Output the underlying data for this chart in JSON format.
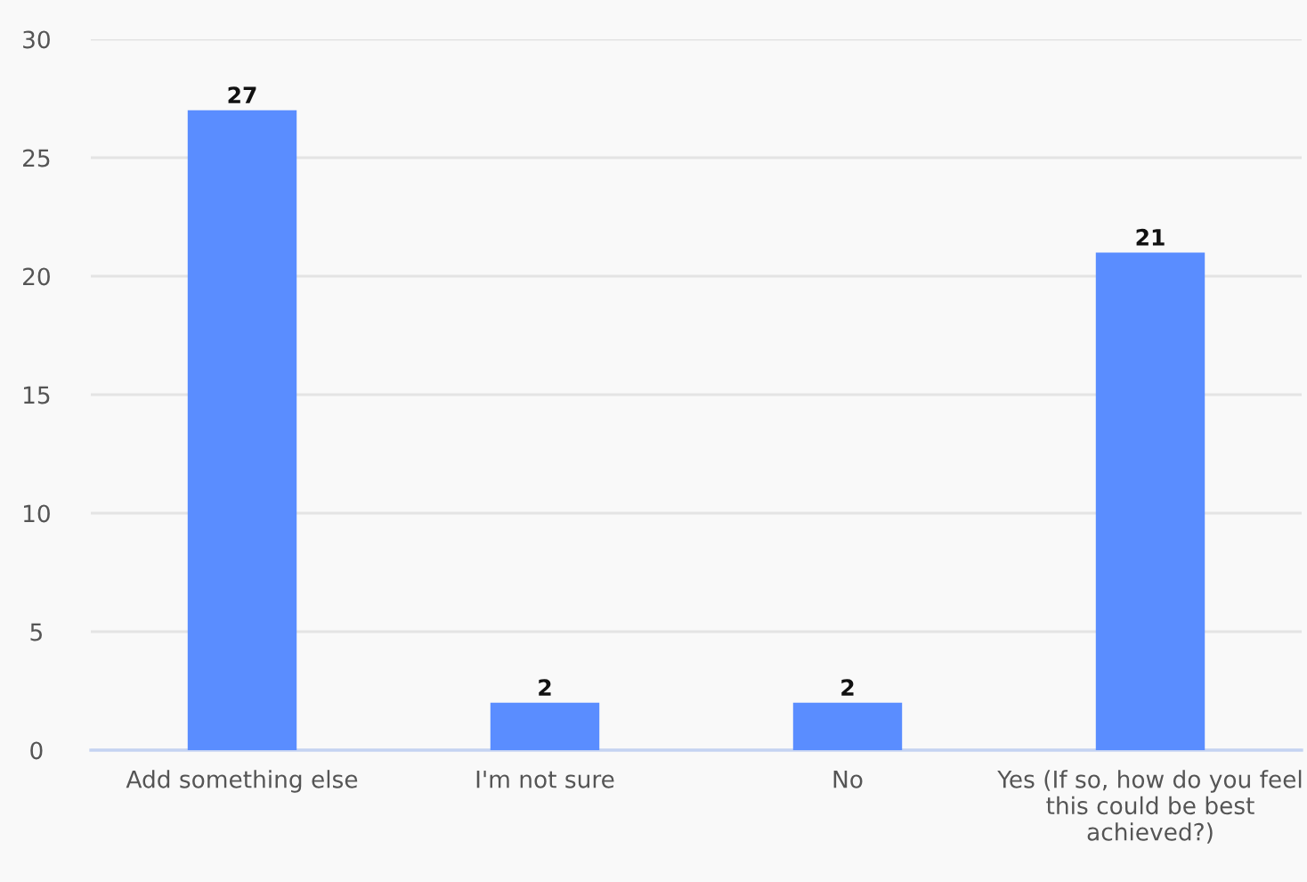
{
  "chart_data": {
    "type": "bar",
    "categories": [
      "Add something else",
      "I'm not sure",
      "No",
      "Yes (If so, how do you feel\nthis could be best\nachieved?)"
    ],
    "values": [
      27,
      2,
      2,
      21
    ],
    "color": "#5a8dff",
    "ylim": [
      0,
      30
    ],
    "yticks": [
      0,
      5,
      10,
      15,
      20,
      25,
      30
    ],
    "grid": "y",
    "data_labels": true
  }
}
